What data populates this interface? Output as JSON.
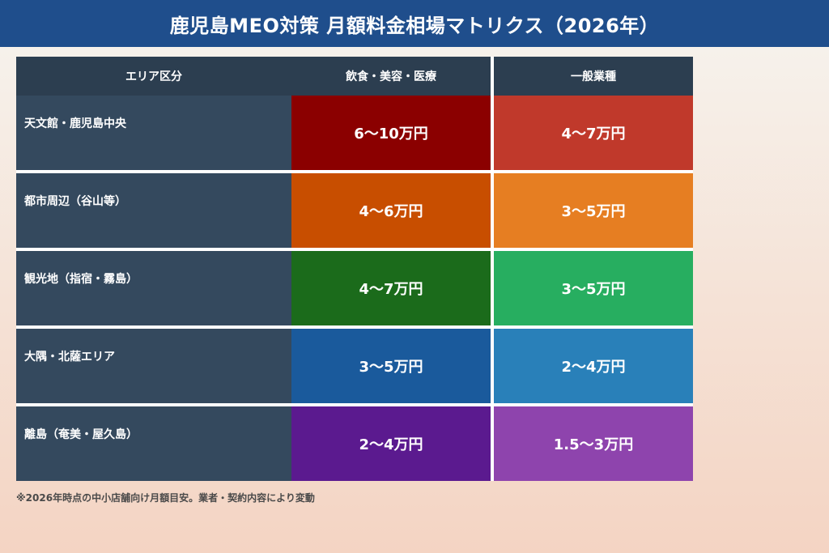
{
  "title": "鹿児島MEO対策 月額料金相場マトリクス（2026年）",
  "chart_data": {
    "type": "table",
    "title": "鹿児島MEO対策 月額料金相場マトリクス（2026年）",
    "columns": [
      "エリア区分",
      "飲食・美容・医療",
      "一般業種"
    ],
    "rows": [
      {
        "area": "天文館・鹿児島中央",
        "food": "6〜10万円",
        "general": "4〜7万円",
        "food_color": "#8b0000",
        "general_color": "#c0392b"
      },
      {
        "area": "都市周辺（谷山等）",
        "food": "4〜6万円",
        "general": "3〜5万円",
        "food_color": "#c84e00",
        "general_color": "#e67e22"
      },
      {
        "area": "観光地（指宿・霧島）",
        "food": "4〜7万円",
        "general": "3〜5万円",
        "food_color": "#1b6b1b",
        "general_color": "#27ae60"
      },
      {
        "area": "大隅・北薩エリア",
        "food": "3〜5万円",
        "general": "2〜4万円",
        "food_color": "#1a5a9c",
        "general_color": "#2980b9"
      },
      {
        "area": "離島（奄美・屋久島）",
        "food": "2〜4万円",
        "general": "1.5〜3万円",
        "food_color": "#5b1a8f",
        "general_color": "#8e44ad"
      }
    ]
  },
  "footnote": "※2026年時点の中小店舗向け月額目安。業者・契約内容により変動"
}
